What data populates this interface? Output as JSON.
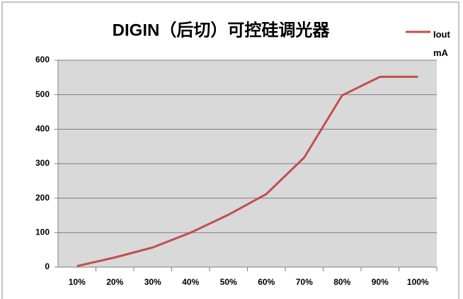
{
  "chart_data": {
    "type": "line",
    "title": "DIGIN（后切）可控硅调光器",
    "categories": [
      "10%",
      "20%",
      "30%",
      "40%",
      "50%",
      "60%",
      "70%",
      "80%",
      "90%",
      "100%"
    ],
    "series": [
      {
        "name": "Iout mA",
        "color": "#c0504d",
        "values": [
          3,
          28,
          57,
          100,
          152,
          212,
          318,
          498,
          552,
          552
        ]
      }
    ],
    "ylim": [
      0,
      600
    ],
    "yticks": [
      0,
      100,
      200,
      300,
      400,
      500,
      600
    ],
    "grid": true,
    "legend": "top-right"
  }
}
